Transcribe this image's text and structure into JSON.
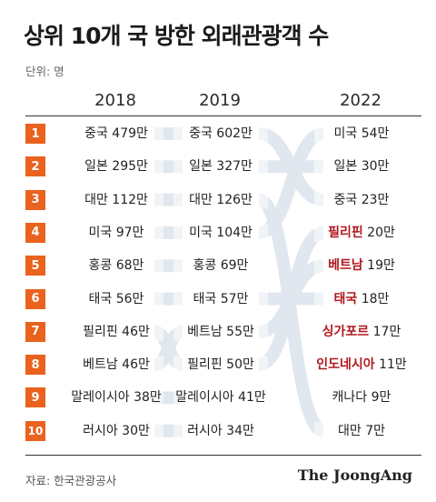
{
  "title": "상위 10개 국 방한 외래관광객 수",
  "unit": "단위: 명",
  "source": "자료: 한국관광공사",
  "brand": "The JoongAng",
  "colors": {
    "rank_bg": "#e9621e",
    "highlight": "#b0171d",
    "flow": "#e1e7ee"
  },
  "chart_data": {
    "type": "table",
    "years": [
      "2018",
      "2019",
      "2022"
    ],
    "ranks": [
      "1",
      "2",
      "3",
      "4",
      "5",
      "6",
      "7",
      "8",
      "9",
      "10"
    ],
    "columns": [
      {
        "year": "2018",
        "rows": [
          {
            "country": "중국",
            "value": "479만"
          },
          {
            "country": "일본",
            "value": "295만"
          },
          {
            "country": "대만",
            "value": "112만"
          },
          {
            "country": "미국",
            "value": "97만"
          },
          {
            "country": "홍콩",
            "value": "68만"
          },
          {
            "country": "태국",
            "value": "56만"
          },
          {
            "country": "필리핀",
            "value": "46만"
          },
          {
            "country": "베트남",
            "value": "46만"
          },
          {
            "country": "말레이시아",
            "value": "38만"
          },
          {
            "country": "러시아",
            "value": "30만"
          }
        ]
      },
      {
        "year": "2019",
        "rows": [
          {
            "country": "중국",
            "value": "602만"
          },
          {
            "country": "일본",
            "value": "327만"
          },
          {
            "country": "대만",
            "value": "126만"
          },
          {
            "country": "미국",
            "value": "104만"
          },
          {
            "country": "홍콩",
            "value": "69만"
          },
          {
            "country": "태국",
            "value": "57만"
          },
          {
            "country": "베트남",
            "value": "55만"
          },
          {
            "country": "필리핀",
            "value": "50만"
          },
          {
            "country": "말레이시아",
            "value": "41만"
          },
          {
            "country": "러시아",
            "value": "34만"
          }
        ]
      },
      {
        "year": "2022",
        "rows": [
          {
            "country": "미국",
            "value": "54만",
            "highlight": false
          },
          {
            "country": "일본",
            "value": "30만",
            "highlight": false
          },
          {
            "country": "중국",
            "value": "23만",
            "highlight": false
          },
          {
            "country": "필리핀",
            "value": "20만",
            "highlight": true
          },
          {
            "country": "베트남",
            "value": "19만",
            "highlight": true
          },
          {
            "country": "태국",
            "value": "18만",
            "highlight": true
          },
          {
            "country": "싱가포르",
            "value": "17만",
            "highlight": true
          },
          {
            "country": "인도네시아",
            "value": "11만",
            "highlight": true
          },
          {
            "country": "캐나다",
            "value": "9만",
            "highlight": false
          },
          {
            "country": "대만",
            "value": "7만",
            "highlight": false
          }
        ]
      }
    ]
  }
}
